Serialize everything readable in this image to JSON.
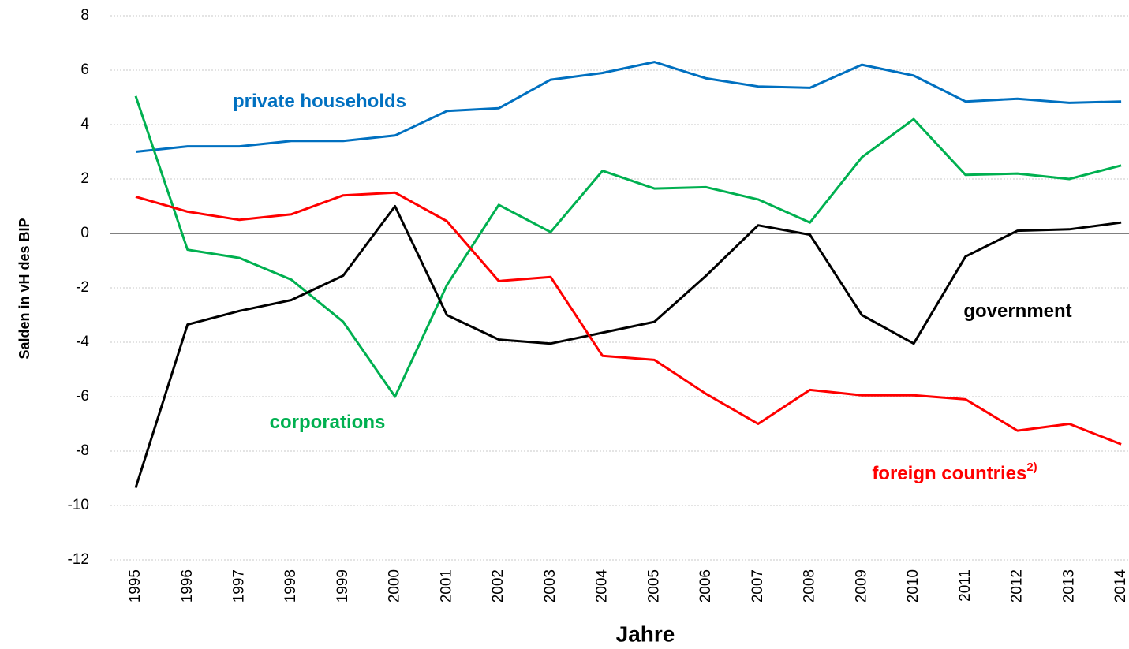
{
  "chart_data": {
    "type": "line",
    "x_label": "Jahre",
    "y_label": "Salden in vH des BIP",
    "categories": [
      "1995",
      "1996",
      "1997",
      "1998",
      "1999",
      "2000",
      "2001",
      "2002",
      "2003",
      "2004",
      "2005",
      "2006",
      "2007",
      "2008",
      "2009",
      "2010",
      "2011",
      "2012",
      "2013",
      "2014"
    ],
    "series": [
      {
        "name": "private households",
        "color": "#0070c0",
        "values": [
          3.0,
          3.2,
          3.2,
          3.4,
          3.4,
          3.6,
          4.5,
          4.6,
          5.65,
          5.9,
          6.3,
          5.7,
          5.4,
          5.35,
          6.2,
          5.8,
          4.85,
          4.95,
          4.8,
          4.85
        ]
      },
      {
        "name": "corporations",
        "color": "#00b050",
        "values": [
          5.05,
          -0.6,
          -0.9,
          -1.7,
          -3.25,
          -6.0,
          -1.9,
          1.05,
          0.05,
          2.3,
          1.65,
          1.7,
          1.25,
          0.4,
          2.8,
          4.2,
          2.15,
          2.2,
          2.0,
          2.5
        ]
      },
      {
        "name": "government",
        "color": "#000000",
        "values": [
          -9.35,
          -3.35,
          -2.85,
          -2.45,
          -1.55,
          1.0,
          -3.0,
          -3.9,
          -4.05,
          -3.65,
          -3.25,
          -1.55,
          0.3,
          -0.05,
          -3.0,
          -4.05,
          -0.85,
          0.1,
          0.15,
          0.4
        ]
      },
      {
        "name": "foreign countries",
        "footnote_mark": "2)",
        "color": "#ff0000",
        "values": [
          1.35,
          0.8,
          0.5,
          0.7,
          1.4,
          1.5,
          0.45,
          -1.75,
          -1.6,
          -4.5,
          -4.65,
          -5.9,
          -7.0,
          -5.75,
          -5.95,
          -5.95,
          -6.1,
          -7.25,
          -7.0,
          -7.75
        ]
      }
    ],
    "ylim": [
      -12,
      8
    ],
    "yticks": [
      -12,
      -10,
      -8,
      -6,
      -4,
      -2,
      0,
      2,
      4,
      6,
      8
    ],
    "grid": true
  }
}
